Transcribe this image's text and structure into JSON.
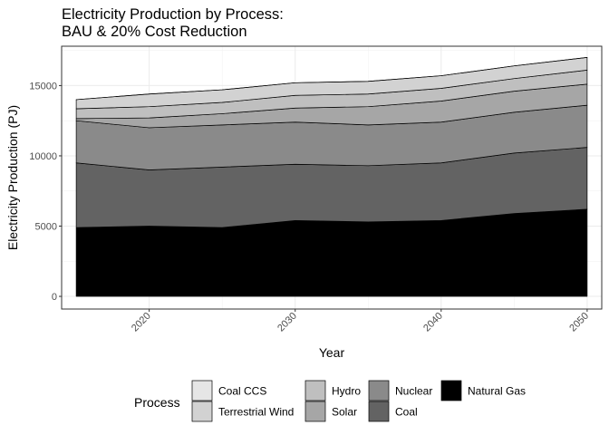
{
  "chart_data": {
    "type": "area",
    "stacked": true,
    "title": "Electricity Production by Process:\nBAU & 20% Cost Reduction",
    "xlabel": "Year",
    "ylabel": "Electricity Production (PJ)",
    "xlim": [
      2014,
      2051
    ],
    "ylim": [
      -900,
      17800
    ],
    "xticks": [
      2020,
      2030,
      2040,
      2050
    ],
    "yticks": [
      0,
      5000,
      10000,
      15000
    ],
    "grid": true,
    "legend_position": "bottom",
    "legend_title": "Process",
    "x": [
      2015,
      2020,
      2025,
      2030,
      2035,
      2040,
      2045,
      2050
    ],
    "series": [
      {
        "name": "Natural Gas",
        "color": "#000000",
        "values": [
          4900,
          5000,
          4900,
          5400,
          5300,
          5400,
          5900,
          6200
        ]
      },
      {
        "name": "Coal",
        "color": "#636363",
        "values": [
          4600,
          4000,
          4300,
          4000,
          4000,
          4100,
          4300,
          4400
        ]
      },
      {
        "name": "Nuclear",
        "color": "#8a8a8a",
        "values": [
          3000,
          3000,
          3000,
          3000,
          2900,
          2900,
          2900,
          3000
        ]
      },
      {
        "name": "Solar",
        "color": "#a6a6a6",
        "values": [
          150,
          700,
          800,
          1000,
          1300,
          1500,
          1500,
          1500
        ]
      },
      {
        "name": "Hydro",
        "color": "#bfbfbf",
        "values": [
          700,
          800,
          800,
          900,
          900,
          900,
          900,
          1000
        ]
      },
      {
        "name": "Terrestrial Wind",
        "color": "#d2d2d2",
        "values": [
          650,
          900,
          900,
          900,
          900,
          900,
          900,
          900
        ]
      },
      {
        "name": "Coal CCS",
        "color": "#e6e6e6",
        "values": [
          0,
          0,
          0,
          0,
          0,
          0,
          0,
          0
        ]
      }
    ]
  },
  "legend": {
    "title": "Process",
    "items": [
      {
        "label": "Coal CCS",
        "color": "#e6e6e6"
      },
      {
        "label": "Terrestrial Wind",
        "color": "#d2d2d2"
      },
      {
        "label": "Hydro",
        "color": "#bfbfbf"
      },
      {
        "label": "Solar",
        "color": "#a6a6a6"
      },
      {
        "label": "Nuclear",
        "color": "#8a8a8a"
      },
      {
        "label": "Coal",
        "color": "#636363"
      },
      {
        "label": "Natural Gas",
        "color": "#000000"
      }
    ]
  }
}
